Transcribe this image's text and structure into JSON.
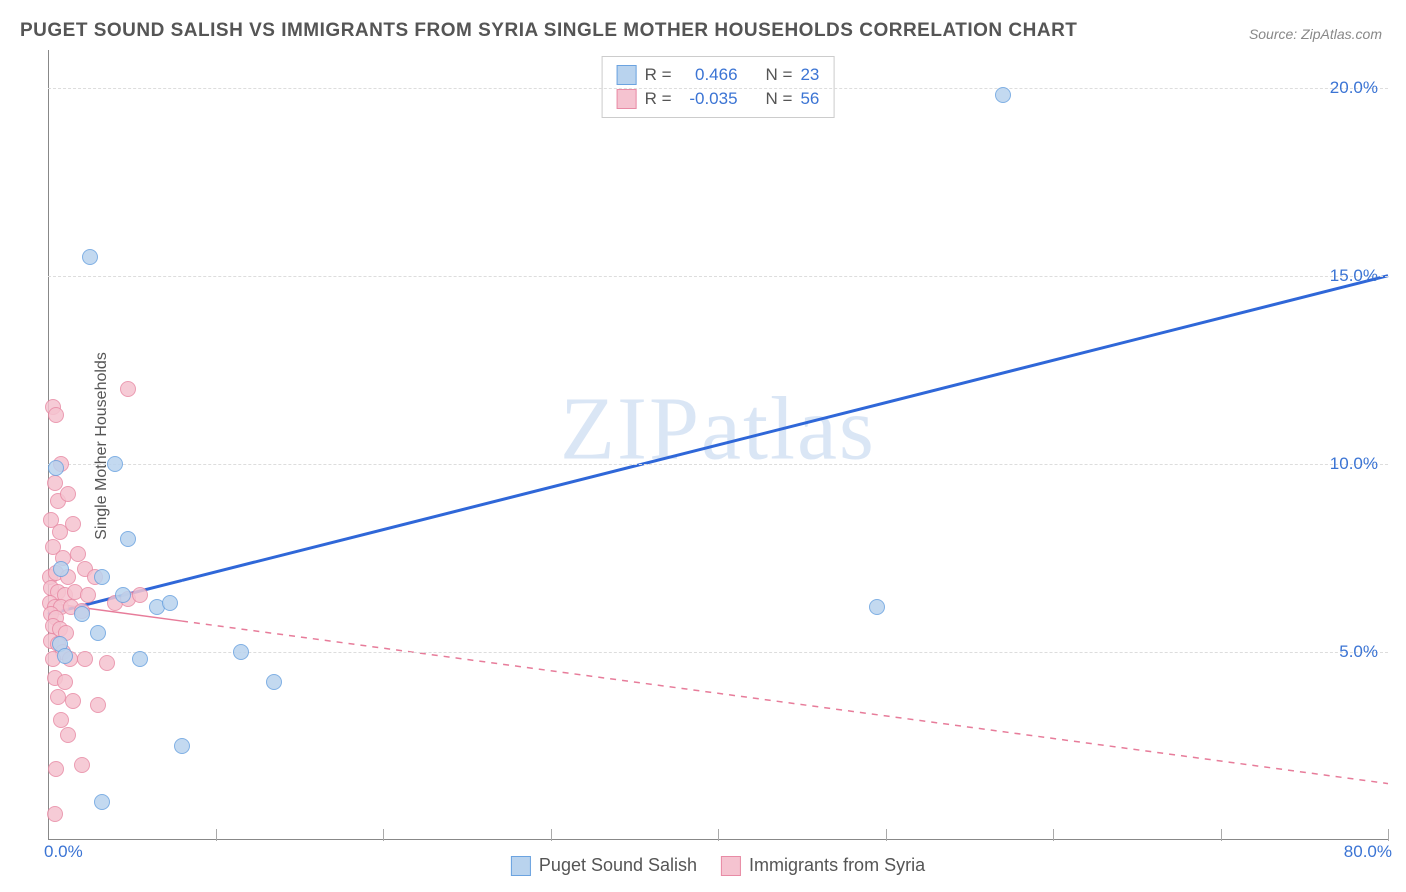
{
  "title": "PUGET SOUND SALISH VS IMMIGRANTS FROM SYRIA SINGLE MOTHER HOUSEHOLDS CORRELATION CHART",
  "source": "Source: ZipAtlas.com",
  "y_axis_label": "Single Mother Households",
  "watermark": "ZIPatlas",
  "chart": {
    "type": "scatter",
    "xlim": [
      0,
      80
    ],
    "ylim": [
      0,
      21
    ],
    "x_ticks": [
      0,
      10,
      20,
      30,
      40,
      50,
      60,
      70,
      80
    ],
    "y_ticks": [
      5,
      10,
      15,
      20
    ],
    "x_tick_labels": {
      "0": "0.0%",
      "80": "80.0%"
    },
    "y_tick_labels": {
      "5": "5.0%",
      "10": "10.0%",
      "15": "15.0%",
      "20": "20.0%"
    },
    "background": "#ffffff",
    "grid_color": "#dddddd",
    "axis_color": "#888888",
    "x_label_color": "#3b74d4",
    "y_label_color": "#3b74d4",
    "tick_fontsize": 17
  },
  "series": [
    {
      "name": "Puget Sound Salish",
      "fill": "#b9d3ee",
      "stroke": "#6ba3e0",
      "trend_stroke": "#2f67d8",
      "trend_width": 3,
      "trend_dash": "none",
      "R": "0.466",
      "N": "23",
      "trend_start": {
        "x": 0,
        "y": 6.0
      },
      "trend_end": {
        "x": 80,
        "y": 15.0
      },
      "marker_size": 16,
      "points": [
        {
          "x": 0.5,
          "y": 9.9
        },
        {
          "x": 0.8,
          "y": 7.2
        },
        {
          "x": 0.7,
          "y": 5.2
        },
        {
          "x": 1.0,
          "y": 4.9
        },
        {
          "x": 2.5,
          "y": 15.5
        },
        {
          "x": 4.0,
          "y": 10.0
        },
        {
          "x": 2.0,
          "y": 6.0
        },
        {
          "x": 3.2,
          "y": 7.0
        },
        {
          "x": 4.8,
          "y": 8.0
        },
        {
          "x": 3.0,
          "y": 5.5
        },
        {
          "x": 4.5,
          "y": 6.5
        },
        {
          "x": 5.5,
          "y": 4.8
        },
        {
          "x": 6.5,
          "y": 6.2
        },
        {
          "x": 7.3,
          "y": 6.3
        },
        {
          "x": 3.2,
          "y": 1.0
        },
        {
          "x": 8.0,
          "y": 2.5
        },
        {
          "x": 11.5,
          "y": 5.0
        },
        {
          "x": 13.5,
          "y": 4.2
        },
        {
          "x": 49.5,
          "y": 6.2
        },
        {
          "x": 57.0,
          "y": 19.8
        }
      ]
    },
    {
      "name": "Immigrants from Syria",
      "fill": "#f5c3d0",
      "stroke": "#e88ba5",
      "trend_stroke": "#e77c9a",
      "trend_width": 1.5,
      "trend_dash": "6,6",
      "R": "-0.035",
      "N": "56",
      "trend_start": {
        "x": 0,
        "y": 6.3
      },
      "trend_end": {
        "x": 80,
        "y": 1.5
      },
      "marker_size": 16,
      "points": [
        {
          "x": 0.3,
          "y": 11.5
        },
        {
          "x": 0.5,
          "y": 11.3
        },
        {
          "x": 0.8,
          "y": 10.0
        },
        {
          "x": 0.4,
          "y": 9.5
        },
        {
          "x": 0.6,
          "y": 9.0
        },
        {
          "x": 1.2,
          "y": 9.2
        },
        {
          "x": 0.2,
          "y": 8.5
        },
        {
          "x": 0.7,
          "y": 8.2
        },
        {
          "x": 1.5,
          "y": 8.4
        },
        {
          "x": 0.3,
          "y": 7.8
        },
        {
          "x": 0.9,
          "y": 7.5
        },
        {
          "x": 1.8,
          "y": 7.6
        },
        {
          "x": 0.1,
          "y": 7.0
        },
        {
          "x": 0.5,
          "y": 7.1
        },
        {
          "x": 1.2,
          "y": 7.0
        },
        {
          "x": 2.2,
          "y": 7.2
        },
        {
          "x": 2.8,
          "y": 7.0
        },
        {
          "x": 0.2,
          "y": 6.7
        },
        {
          "x": 0.6,
          "y": 6.6
        },
        {
          "x": 1.0,
          "y": 6.5
        },
        {
          "x": 1.6,
          "y": 6.6
        },
        {
          "x": 2.4,
          "y": 6.5
        },
        {
          "x": 0.1,
          "y": 6.3
        },
        {
          "x": 0.4,
          "y": 6.2
        },
        {
          "x": 0.8,
          "y": 6.2
        },
        {
          "x": 1.4,
          "y": 6.2
        },
        {
          "x": 2.0,
          "y": 6.1
        },
        {
          "x": 0.2,
          "y": 6.0
        },
        {
          "x": 0.5,
          "y": 5.9
        },
        {
          "x": 0.3,
          "y": 5.7
        },
        {
          "x": 0.7,
          "y": 5.6
        },
        {
          "x": 1.1,
          "y": 5.5
        },
        {
          "x": 4.0,
          "y": 6.3
        },
        {
          "x": 4.8,
          "y": 6.4
        },
        {
          "x": 5.5,
          "y": 6.5
        },
        {
          "x": 0.2,
          "y": 5.3
        },
        {
          "x": 0.6,
          "y": 5.2
        },
        {
          "x": 0.9,
          "y": 5.0
        },
        {
          "x": 0.3,
          "y": 4.8
        },
        {
          "x": 1.3,
          "y": 4.8
        },
        {
          "x": 2.2,
          "y": 4.8
        },
        {
          "x": 3.5,
          "y": 4.7
        },
        {
          "x": 0.4,
          "y": 4.3
        },
        {
          "x": 1.0,
          "y": 4.2
        },
        {
          "x": 0.6,
          "y": 3.8
        },
        {
          "x": 1.5,
          "y": 3.7
        },
        {
          "x": 3.0,
          "y": 3.6
        },
        {
          "x": 0.8,
          "y": 3.2
        },
        {
          "x": 1.2,
          "y": 2.8
        },
        {
          "x": 2.0,
          "y": 2.0
        },
        {
          "x": 0.5,
          "y": 1.9
        },
        {
          "x": 4.8,
          "y": 12.0
        },
        {
          "x": 0.4,
          "y": 0.7
        }
      ]
    }
  ],
  "legend_top": {
    "r_label": "R =",
    "n_label": "N =",
    "text_color": "#555555",
    "value_color": "#3b74d4"
  },
  "legend_bottom": {
    "items": [
      "Puget Sound Salish",
      "Immigrants from Syria"
    ]
  }
}
